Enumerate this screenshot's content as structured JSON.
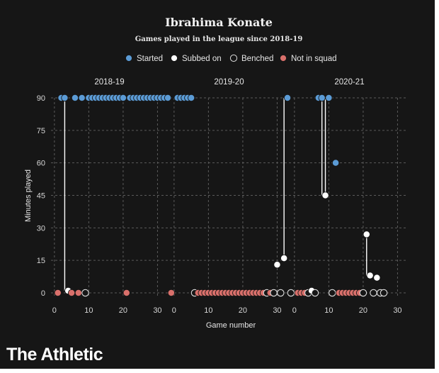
{
  "chart_data": {
    "type": "scatter",
    "title": "Ibrahima Konate",
    "subtitle": "Games played in the league since 2018-19",
    "xlabel": "Game number",
    "ylabel": "Minutes played",
    "ylim": [
      0,
      90
    ],
    "yticks": [
      0,
      15,
      30,
      45,
      60,
      75,
      90
    ],
    "xlim": [
      -1,
      33
    ],
    "xticks": [
      0,
      10,
      20,
      30
    ],
    "grid": true,
    "legend_position": "top",
    "legend": [
      {
        "key": "started",
        "label": "Started",
        "color": "#5b9bd5"
      },
      {
        "key": "subbed",
        "label": "Subbed on",
        "color": "#ffffff"
      },
      {
        "key": "benched",
        "label": "Benched",
        "color": "#161616"
      },
      {
        "key": "notinsquad",
        "label": "Not in squad",
        "color": "#d9706b"
      }
    ],
    "panels": [
      {
        "title": "2018-19",
        "games": [
          {
            "x": 1,
            "s": "notinsquad",
            "y": 0
          },
          {
            "x": 2,
            "s": "started",
            "y": 90
          },
          {
            "x": 3,
            "s": "started",
            "y": 90
          },
          {
            "x": 4,
            "s": "subbed",
            "y": 1
          },
          {
            "x": 5,
            "s": "notinsquad",
            "y": 0
          },
          {
            "x": 6,
            "s": "started",
            "y": 90
          },
          {
            "x": 7,
            "s": "notinsquad",
            "y": 0
          },
          {
            "x": 8,
            "s": "started",
            "y": 90
          },
          {
            "x": 9,
            "s": "benched",
            "y": 0
          },
          {
            "x": 10,
            "s": "started",
            "y": 90
          },
          {
            "x": 11,
            "s": "started",
            "y": 90
          },
          {
            "x": 12,
            "s": "started",
            "y": 90
          },
          {
            "x": 13,
            "s": "started",
            "y": 90
          },
          {
            "x": 14,
            "s": "started",
            "y": 90
          },
          {
            "x": 15,
            "s": "started",
            "y": 90
          },
          {
            "x": 16,
            "s": "started",
            "y": 90
          },
          {
            "x": 17,
            "s": "started",
            "y": 90
          },
          {
            "x": 18,
            "s": "started",
            "y": 90
          },
          {
            "x": 19,
            "s": "started",
            "y": 90
          },
          {
            "x": 20,
            "s": "started",
            "y": 90
          },
          {
            "x": 21,
            "s": "notinsquad",
            "y": 0
          },
          {
            "x": 22,
            "s": "started",
            "y": 90
          },
          {
            "x": 23,
            "s": "started",
            "y": 90
          },
          {
            "x": 24,
            "s": "started",
            "y": 90
          },
          {
            "x": 25,
            "s": "started",
            "y": 90
          },
          {
            "x": 26,
            "s": "started",
            "y": 90
          },
          {
            "x": 27,
            "s": "started",
            "y": 90
          },
          {
            "x": 28,
            "s": "started",
            "y": 90
          },
          {
            "x": 29,
            "s": "started",
            "y": 90
          },
          {
            "x": 30,
            "s": "started",
            "y": 90
          },
          {
            "x": 31,
            "s": "started",
            "y": 90
          },
          {
            "x": 32,
            "s": "started",
            "y": 90
          },
          {
            "x": 33,
            "s": "started",
            "y": 90
          },
          {
            "x": 34,
            "s": "notinsquad",
            "y": 0
          }
        ]
      },
      {
        "title": "2019-20",
        "games": [
          {
            "x": 1,
            "s": "started",
            "y": 90
          },
          {
            "x": 2,
            "s": "started",
            "y": 90
          },
          {
            "x": 3,
            "s": "started",
            "y": 90
          },
          {
            "x": 4,
            "s": "started",
            "y": 90
          },
          {
            "x": 5,
            "s": "started",
            "y": 90
          },
          {
            "x": 6,
            "s": "benched",
            "y": 0
          },
          {
            "x": 7,
            "s": "notinsquad",
            "y": 0
          },
          {
            "x": 8,
            "s": "notinsquad",
            "y": 0
          },
          {
            "x": 9,
            "s": "notinsquad",
            "y": 0
          },
          {
            "x": 10,
            "s": "notinsquad",
            "y": 0
          },
          {
            "x": 11,
            "s": "notinsquad",
            "y": 0
          },
          {
            "x": 12,
            "s": "notinsquad",
            "y": 0
          },
          {
            "x": 13,
            "s": "notinsquad",
            "y": 0
          },
          {
            "x": 14,
            "s": "notinsquad",
            "y": 0
          },
          {
            "x": 15,
            "s": "notinsquad",
            "y": 0
          },
          {
            "x": 16,
            "s": "notinsquad",
            "y": 0
          },
          {
            "x": 17,
            "s": "notinsquad",
            "y": 0
          },
          {
            "x": 18,
            "s": "notinsquad",
            "y": 0
          },
          {
            "x": 19,
            "s": "notinsquad",
            "y": 0
          },
          {
            "x": 20,
            "s": "notinsquad",
            "y": 0
          },
          {
            "x": 21,
            "s": "notinsquad",
            "y": 0
          },
          {
            "x": 22,
            "s": "notinsquad",
            "y": 0
          },
          {
            "x": 23,
            "s": "notinsquad",
            "y": 0
          },
          {
            "x": 24,
            "s": "notinsquad",
            "y": 0
          },
          {
            "x": 25,
            "s": "notinsquad",
            "y": 0
          },
          {
            "x": 26,
            "s": "notinsquad",
            "y": 0
          },
          {
            "x": 27,
            "s": "benched",
            "y": 0
          },
          {
            "x": 28,
            "s": "notinsquad",
            "y": 0
          },
          {
            "x": 29,
            "s": "benched",
            "y": 0
          },
          {
            "x": 30,
            "s": "subbed",
            "y": 13
          },
          {
            "x": 31,
            "s": "benched",
            "y": 0
          },
          {
            "x": 32,
            "s": "subbed",
            "y": 16
          },
          {
            "x": 33,
            "s": "started",
            "y": 90
          },
          {
            "x": 34,
            "s": "benched",
            "y": 0
          }
        ]
      },
      {
        "title": "2020-21",
        "games": [
          {
            "x": 1,
            "s": "notinsquad",
            "y": 0
          },
          {
            "x": 2,
            "s": "notinsquad",
            "y": 0
          },
          {
            "x": 3,
            "s": "notinsquad",
            "y": 0
          },
          {
            "x": 4,
            "s": "benched",
            "y": 0
          },
          {
            "x": 5,
            "s": "subbed",
            "y": 1
          },
          {
            "x": 6,
            "s": "benched",
            "y": 0
          },
          {
            "x": 7,
            "s": "started",
            "y": 90
          },
          {
            "x": 8,
            "s": "started",
            "y": 90
          },
          {
            "x": 9,
            "s": "subbed",
            "y": 45
          },
          {
            "x": 10,
            "s": "started",
            "y": 90
          },
          {
            "x": 11,
            "s": "benched",
            "y": 0
          },
          {
            "x": 12,
            "s": "started",
            "y": 60
          },
          {
            "x": 13,
            "s": "notinsquad",
            "y": 0
          },
          {
            "x": 14,
            "s": "notinsquad",
            "y": 0
          },
          {
            "x": 15,
            "s": "notinsquad",
            "y": 0
          },
          {
            "x": 16,
            "s": "notinsquad",
            "y": 0
          },
          {
            "x": 17,
            "s": "notinsquad",
            "y": 0
          },
          {
            "x": 18,
            "s": "notinsquad",
            "y": 0
          },
          {
            "x": 19,
            "s": "notinsquad",
            "y": 0
          },
          {
            "x": 20,
            "s": "benched",
            "y": 0
          },
          {
            "x": 21,
            "s": "subbed",
            "y": 27
          },
          {
            "x": 22,
            "s": "subbed",
            "y": 8
          },
          {
            "x": 23,
            "s": "benched",
            "y": 0
          },
          {
            "x": 24,
            "s": "subbed",
            "y": 7
          },
          {
            "x": 25,
            "s": "benched",
            "y": 0
          },
          {
            "x": 26,
            "s": "benched",
            "y": 0
          }
        ]
      }
    ],
    "connectors": [
      {
        "panel": 0,
        "x": 3,
        "from": 1,
        "to": 90
      },
      {
        "panel": 1,
        "x": 32,
        "from": 16,
        "to": 90
      },
      {
        "panel": 2,
        "x": 8,
        "from": 45,
        "to": 90
      },
      {
        "panel": 2,
        "x": 9,
        "from": 45,
        "to": 90
      },
      {
        "panel": 2,
        "x": 21,
        "from": 8,
        "to": 27
      }
    ]
  },
  "footer": {
    "brand": "The Athletic"
  }
}
